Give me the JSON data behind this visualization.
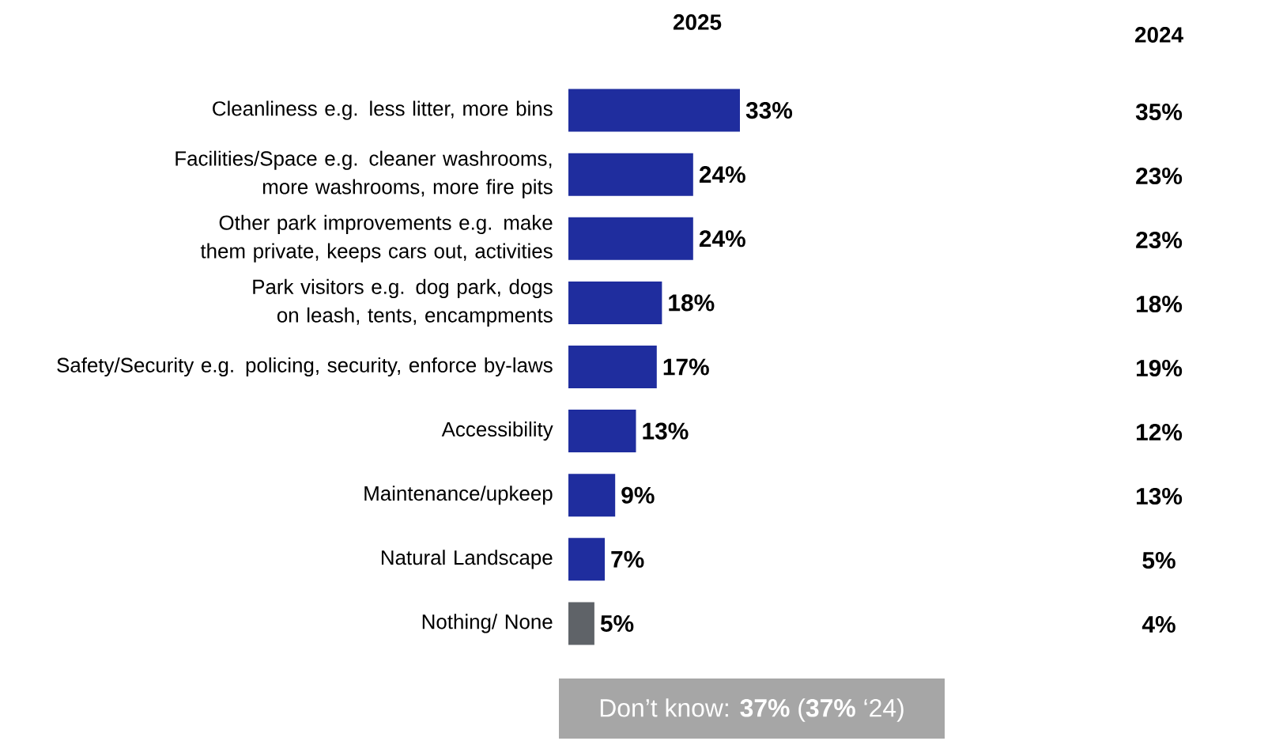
{
  "chart_data": {
    "type": "bar",
    "orientation": "horizontal",
    "title": "2025",
    "categories": [
      "Cleanliness e.g. less litter, more bins",
      "Facilities/Space e.g. cleaner washrooms, more washrooms, more fire pits",
      "Other park improvements e.g. make them private, keeps cars out, activities",
      "Park visitors e.g. dog park, dogs on leash, tents, encampments",
      "Safety/Security e.g. policing, security, enforce by-laws",
      "Accessibility",
      "Maintenance/upkeep",
      "Natural Landscape",
      "Nothing/ None"
    ],
    "values": [
      33,
      24,
      24,
      18,
      17,
      13,
      9,
      7,
      5
    ],
    "value_labels": [
      "33%",
      "24%",
      "24%",
      "18%",
      "17%",
      "13%",
      "9%",
      "7%",
      "5%"
    ],
    "colors": [
      "#1f2d9e",
      "#1f2d9e",
      "#1f2d9e",
      "#1f2d9e",
      "#1f2d9e",
      "#1f2d9e",
      "#1f2d9e",
      "#1f2d9e",
      "#5f6368"
    ],
    "annotations": [
      "2024",
      "35%",
      "23%",
      "23%",
      "18%",
      "19%",
      "12%",
      "13%",
      "5%",
      "4%",
      "Don’t know: **37%** (**37%** ‘24)"
    ]
  }
}
